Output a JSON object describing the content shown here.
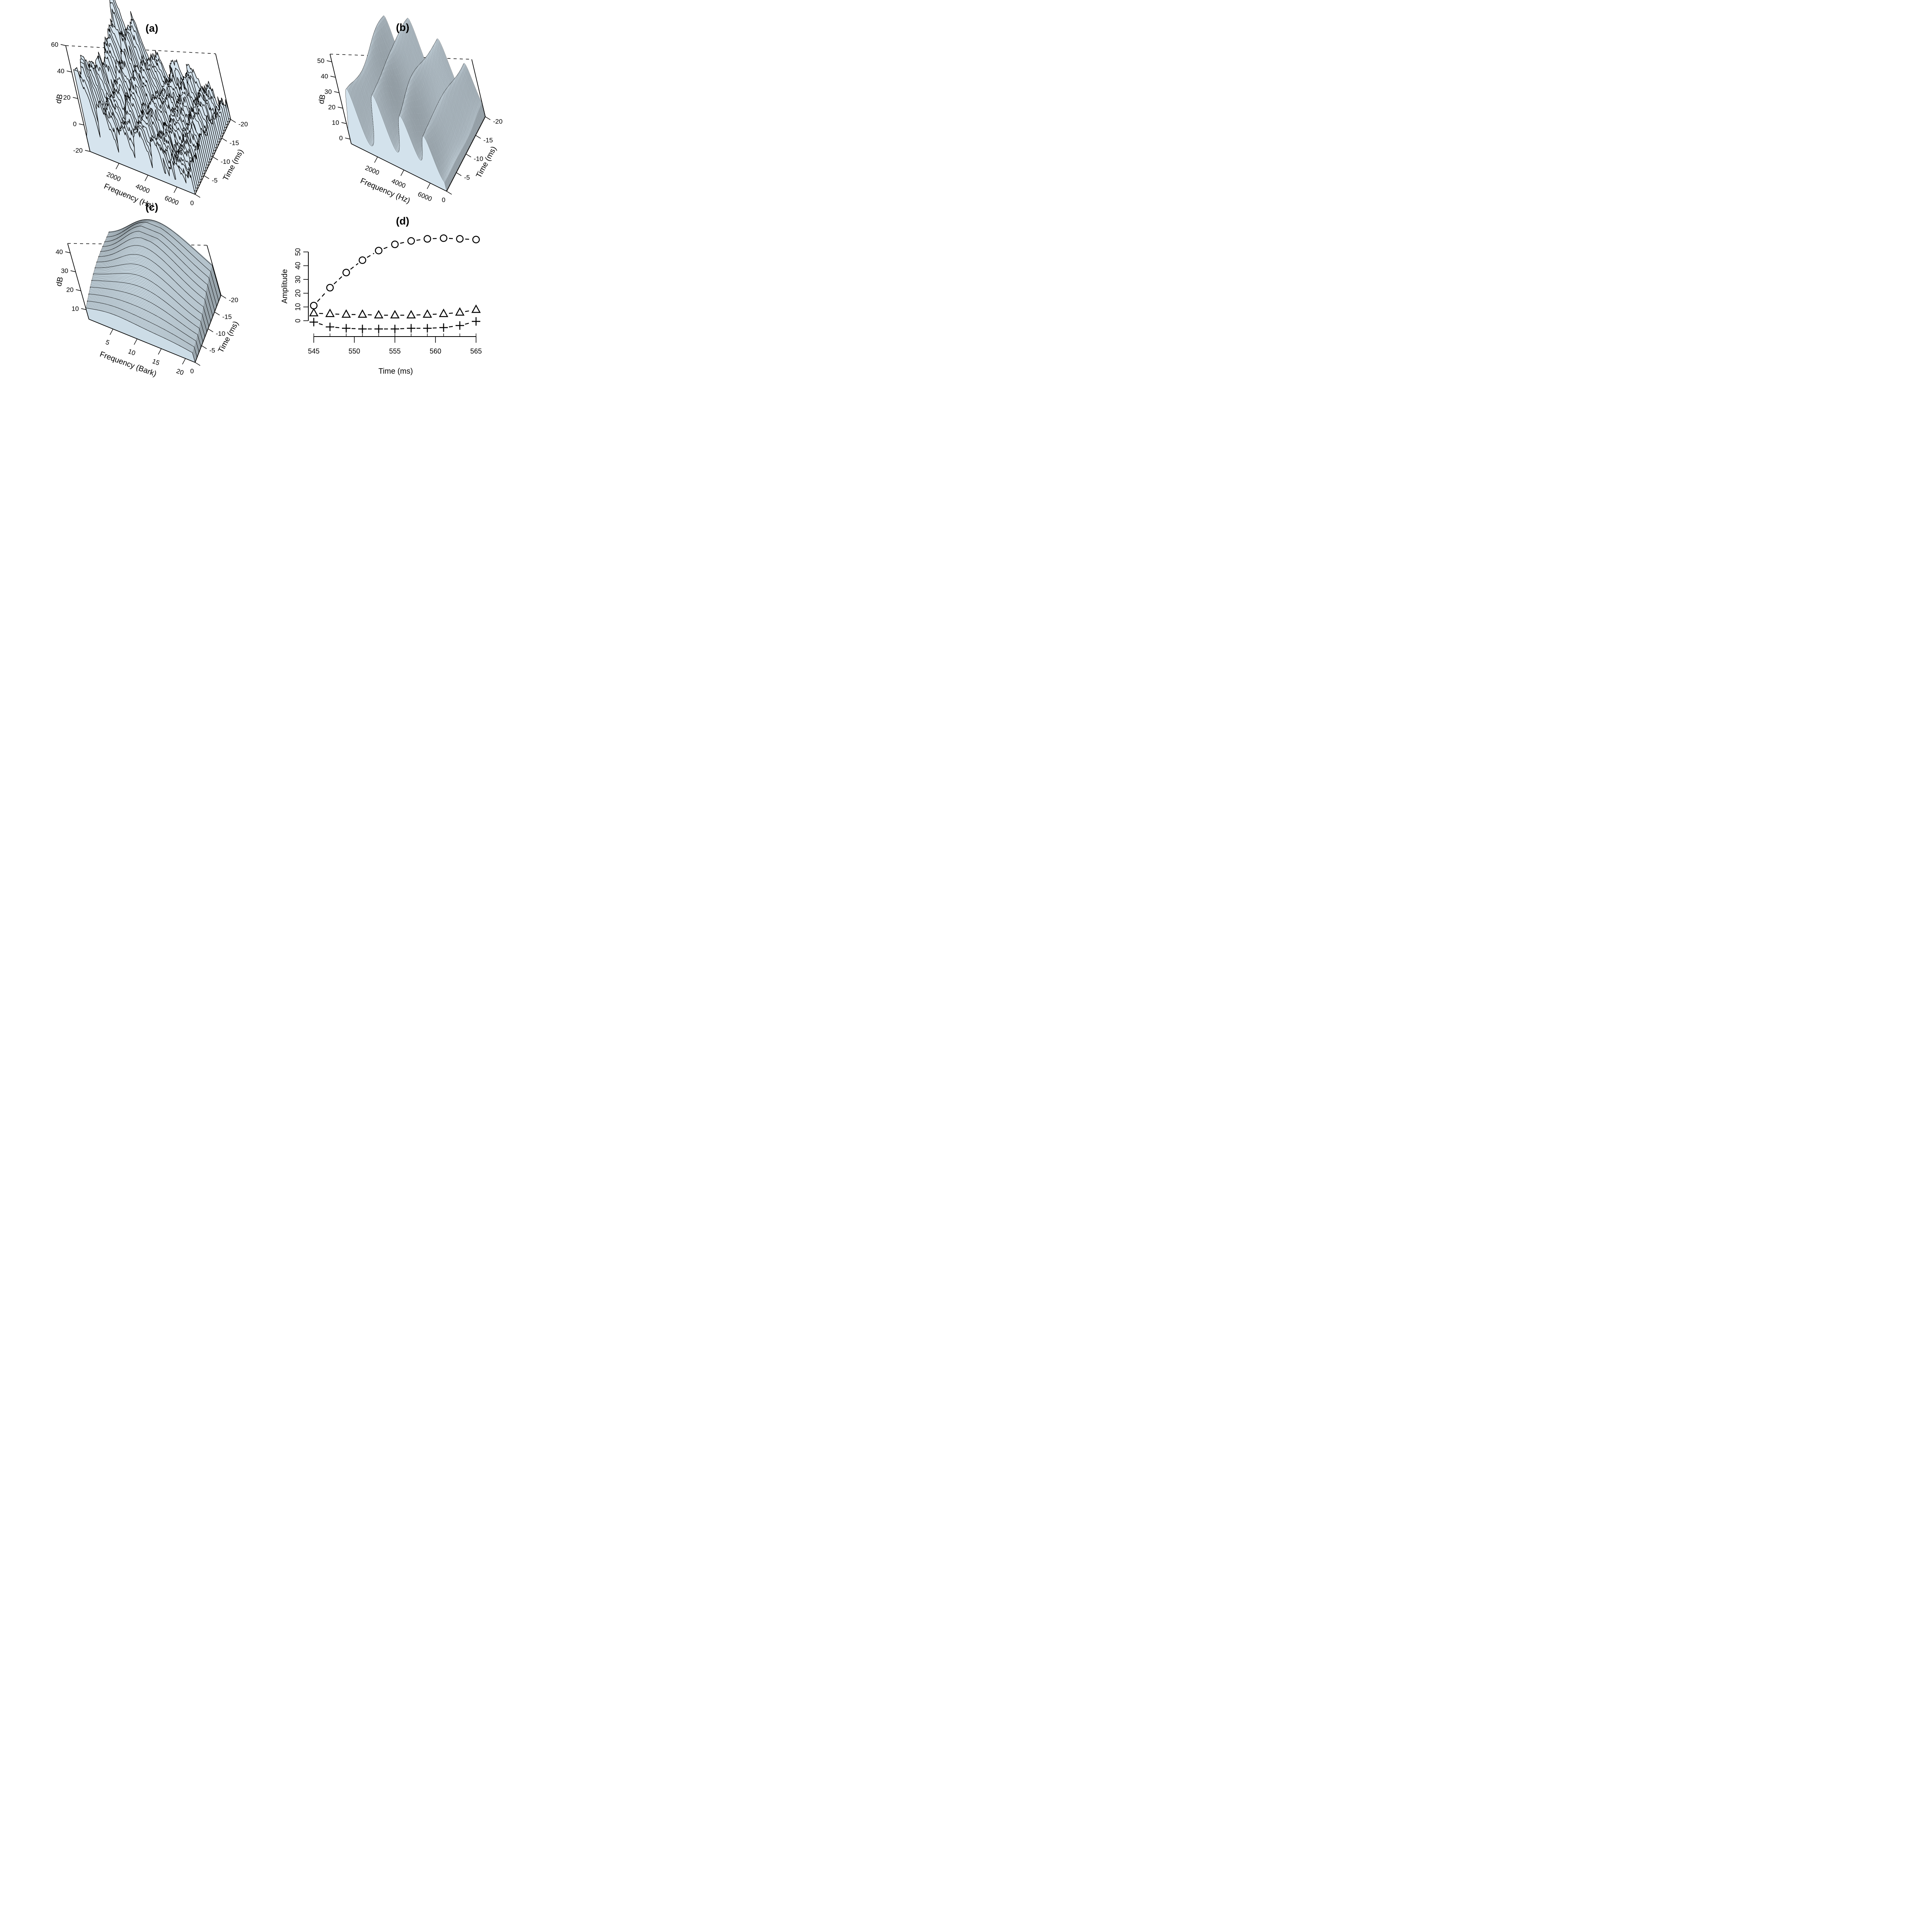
{
  "chart_data": [
    {
      "id": "a",
      "title": "(a)",
      "type": "area",
      "subtype": "3d-perspective-waterfall-spectrum",
      "legend_position": "none",
      "grid": false,
      "axes": {
        "z": {
          "label": "dB",
          "ticks": [
            60,
            40,
            20,
            0,
            -20
          ],
          "range": [
            -20,
            60
          ]
        },
        "x": {
          "label": "Frequency (Hz)",
          "ticks": [
            2000,
            4000,
            6000
          ],
          "range": [
            0,
            7250
          ]
        },
        "y": {
          "label": "Time (ms)",
          "ticks": [
            -20,
            -15,
            -10,
            -5,
            0
          ],
          "range": [
            -20,
            0
          ]
        }
      },
      "surface": {
        "fill": "#d6e4ee",
        "stroke": "#000000",
        "character": "jagged short-time spectra; harmonic ridges whose amplitude decays with frequency, one spiky slice per time frame"
      }
    },
    {
      "id": "b",
      "title": "(b)",
      "type": "area",
      "subtype": "3d-perspective-smooth-fine-mesh-spectrum",
      "legend_position": "none",
      "grid": false,
      "axes": {
        "z": {
          "label": "dB",
          "ticks": [
            50,
            40,
            30,
            20,
            10,
            0
          ],
          "range": [
            -3,
            55
          ]
        },
        "x": {
          "label": "Frequency (Hz)",
          "ticks": [
            2000,
            4000,
            6000
          ],
          "range": [
            0,
            7250
          ]
        },
        "y": {
          "label": "Time (ms)",
          "ticks": [
            -20,
            -15,
            -10,
            -5,
            0
          ],
          "range": [
            -20,
            0
          ]
        }
      },
      "surface": {
        "fill": "#d3e2ec",
        "stroke": "#000000",
        "character": "smoothed auditory spectrum surface with four broad ridges, rendered as a dense fine mesh"
      }
    },
    {
      "id": "c",
      "title": "(c)",
      "type": "area",
      "subtype": "3d-perspective-smooth-surface",
      "legend_position": "none",
      "grid": false,
      "axes": {
        "z": {
          "label": "dB",
          "ticks": [
            40,
            30,
            20,
            10
          ],
          "range": [
            5,
            45
          ]
        },
        "x": {
          "label": "Frequency (Bark)",
          "ticks": [
            5,
            10,
            15,
            20
          ],
          "range": [
            0,
            22
          ]
        },
        "y": {
          "label": "Time (ms)",
          "ticks": [
            -20,
            -15,
            -10,
            -5,
            0
          ],
          "range": [
            -20,
            0
          ]
        }
      },
      "surface": {
        "fill": "#ccdce6",
        "stroke": "#000000",
        "character": "single broad smooth hump peaking toward the back (earlier time, mid Bark frequencies), dense fine shading with sparse darker contour lines"
      }
    },
    {
      "id": "d",
      "title": "(d)",
      "type": "scatter",
      "xlabel": "Time (ms)",
      "ylabel": "Amplitude",
      "x_ticks": [
        545,
        550,
        555,
        560,
        565
      ],
      "y_ticks": [
        0,
        10,
        20,
        30,
        40,
        50
      ],
      "x_range": [
        545,
        565
      ],
      "ylim_shown": [
        0,
        50
      ],
      "legend_position": "none",
      "grid": false,
      "x": [
        545,
        547,
        549,
        551,
        553,
        555,
        557,
        559,
        561,
        563,
        565
      ],
      "series": [
        {
          "name": "circle-series",
          "marker": "circle",
          "line": "dashed",
          "values": [
            11,
            24,
            35,
            44,
            51,
            55.5,
            58,
            59.5,
            60,
            59.5,
            59
          ]
        },
        {
          "name": "triangle-series",
          "marker": "triangle",
          "line": "dashed",
          "values": [
            5.5,
            5,
            4.5,
            4.5,
            4,
            4,
            4,
            4.5,
            5,
            6,
            8
          ]
        },
        {
          "name": "plus-series",
          "marker": "plus",
          "line": "dashed",
          "values": [
            -1,
            -4.5,
            -5.5,
            -6,
            -6,
            -6,
            -5.5,
            -5.5,
            -5,
            -3.5,
            -0.5
          ]
        }
      ]
    }
  ]
}
